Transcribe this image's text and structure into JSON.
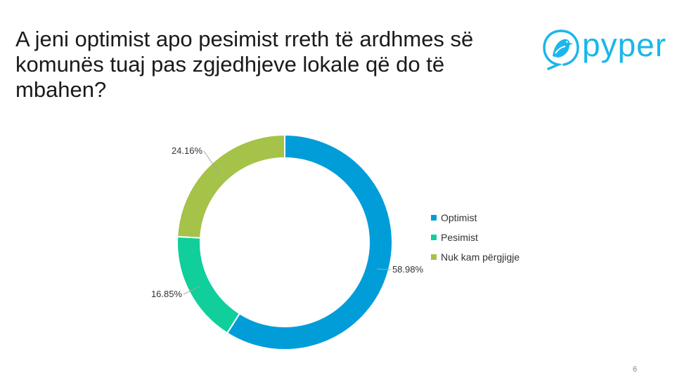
{
  "title": "A jeni optimist apo pesimist rreth të ardhmes së komunës tuaj pas zgjedhjeve lokale që do të mbahen?",
  "logo": {
    "text": "pyper",
    "icon": "bird-icon",
    "color": "#1ab7ea"
  },
  "page_number": "6",
  "chart_data": {
    "type": "pie",
    "variant": "donut",
    "categories": [
      "Optimist",
      "Pesimist",
      "Nuk kam përgjigje"
    ],
    "values": [
      58.98,
      16.85,
      24.16
    ],
    "labels": [
      "58.98%",
      "16.85%",
      "24.16%"
    ],
    "colors": [
      "#009dd9",
      "#10cf9b",
      "#a5c249"
    ],
    "legend": "right",
    "start": "top, clockwise"
  }
}
